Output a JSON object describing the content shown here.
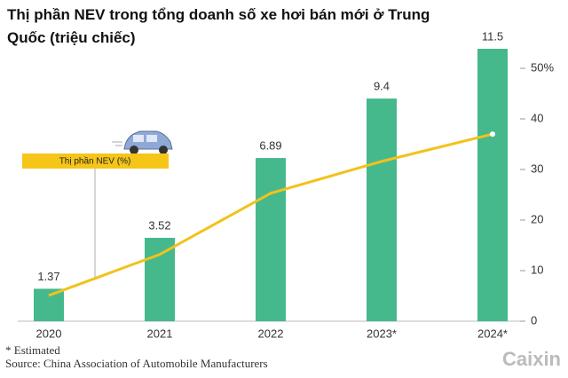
{
  "chart_data": {
    "type": "combo",
    "title": "Thị phần NEV trong tổng doanh số xe hơi bán mới ở Trung Quốc (triệu chiếc)",
    "categories": [
      "2020",
      "2021",
      "2022",
      "2023*",
      "2024*"
    ],
    "series": [
      {
        "type": "bar",
        "color": "#45b98c",
        "values": [
          1.37,
          3.52,
          6.89,
          9.4,
          11.5
        ]
      },
      {
        "type": "line",
        "name": "Thị phần NEV (%)",
        "axis": "y2",
        "color": "#f2c21b",
        "values": [
          5.1,
          13.2,
          25.3,
          31.6,
          37
        ]
      }
    ],
    "y2lim": [
      0,
      50
    ],
    "y2ticks": [
      0,
      10,
      20,
      30,
      40,
      {
        "value": 50,
        "label": "50%"
      }
    ],
    "notes": [
      "* Estimated",
      "Source: China Association of Automobile Manufacturers"
    ],
    "brand": "Caixin"
  }
}
